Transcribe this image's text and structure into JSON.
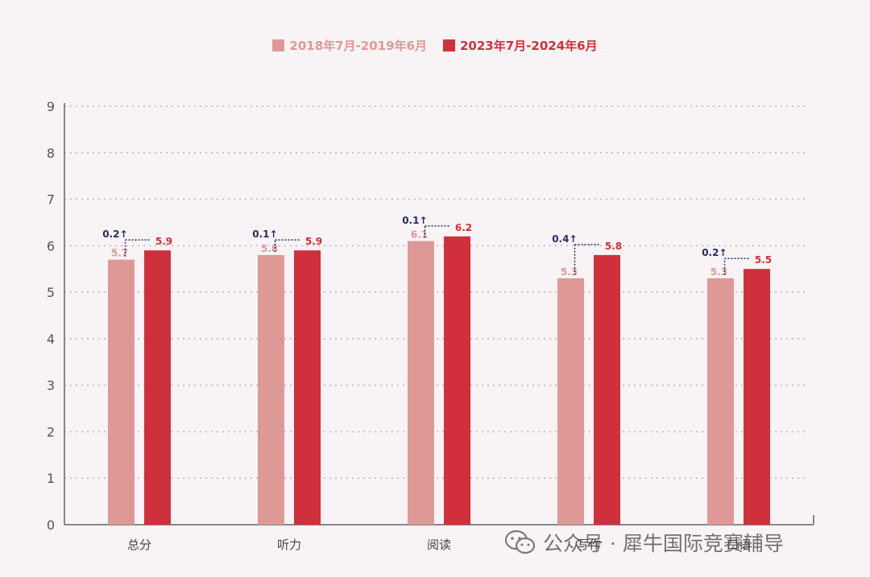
{
  "colors": {
    "series1": "#de9997",
    "series2": "#d0303b",
    "diff": "#2a2a66",
    "axis": "#888888",
    "grid": "#bbbbbb",
    "tick_text": "#555555"
  },
  "chart_data": {
    "type": "bar",
    "categories": [
      "总分",
      "听力",
      "阅读",
      "写作",
      "口语"
    ],
    "series": [
      {
        "name": "2018年7月-2019年6月",
        "values": [
          5.7,
          5.8,
          6.1,
          5.3,
          5.3
        ]
      },
      {
        "name": "2023年7月-2024年6月",
        "values": [
          5.9,
          5.9,
          6.2,
          5.8,
          5.5
        ]
      }
    ],
    "value_labels": {
      "series1": [
        "5.7",
        "5.8",
        "6.1",
        "5.3",
        "5.3"
      ],
      "series2": [
        "5.9",
        "5.9",
        "6.2",
        "5.8",
        "5.5"
      ]
    },
    "differences": [
      "0.2↑",
      "0.1↑",
      "0.1↑",
      "0.4↑",
      "0.2↑"
    ],
    "yticks": [
      "0",
      "1",
      "2",
      "3",
      "4",
      "5",
      "6",
      "7",
      "8",
      "9"
    ],
    "ylim": [
      0,
      9
    ],
    "grid": true,
    "legend_position": "top-center"
  },
  "watermark": {
    "text": "公众号 · 犀牛国际竞赛辅导",
    "icon": "wechat-icon"
  }
}
